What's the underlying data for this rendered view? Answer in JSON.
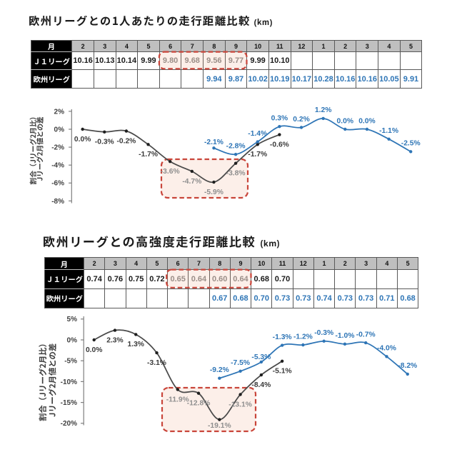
{
  "page": {
    "background": "#ffffff"
  },
  "colors": {
    "blue": "#2e75b6",
    "dark_series": "#4a4a4a",
    "dark_marker": "#1f1f1f",
    "gray_highlight_text": "#8e8e8e",
    "header_gray": "#bfbfbf",
    "grid_line": "#595959",
    "red_dash": "#c9453a",
    "red_fill": "rgba(233,142,98,0.14)",
    "axis": "#7f7f7f",
    "tick_text": "#404040"
  },
  "sections": [
    {
      "title": "欧州リーグとの1人あたりの走行距離比較",
      "unit": "(km)",
      "highlight_months": [
        "6",
        "7",
        "8",
        "9"
      ],
      "table": {
        "corner_label": "月",
        "months": [
          "2",
          "3",
          "4",
          "5",
          "6",
          "7",
          "8",
          "9",
          "10",
          "11",
          "12",
          "1",
          "2",
          "3",
          "4",
          "5"
        ],
        "rows": [
          {
            "label": "Ｊ１リーグ",
            "values": [
              "10.16",
              "10.13",
              "10.14",
              "9.99",
              "9.80",
              "9.68",
              "9.56",
              "9.77",
              "9.99",
              "10.10",
              "",
              "",
              "",
              "",
              "",
              ""
            ]
          },
          {
            "label": "欧州リーグ",
            "values": [
              "",
              "",
              "",
              "",
              "",
              "",
              "9.94",
              "9.87",
              "10.02",
              "10.19",
              "10.17",
              "10.28",
              "10.16",
              "10.16",
              "10.05",
              "9.91"
            ]
          }
        ],
        "highlight_cols": [
          4,
          5,
          6,
          7
        ]
      },
      "chart_data": {
        "type": "line",
        "x_categories": [
          "2",
          "3",
          "4",
          "5",
          "6",
          "7",
          "8",
          "9",
          "10",
          "11",
          "12",
          "1",
          "2",
          "3",
          "4",
          "5"
        ],
        "ylim": [
          -8,
          2
        ],
        "ytick_values": [
          2,
          0,
          -2,
          -4,
          -6,
          -8
        ],
        "ytick_labels": [
          "2%",
          "0%",
          "-2%",
          "-4%",
          "-6%",
          "-8%"
        ],
        "ylabel_line1": "割合（Jリーグ2月比）",
        "ylabel_line2": "Jリーグ2月値との差",
        "legend": "none",
        "grid": "off",
        "series": [
          {
            "name": "J1リーグ",
            "color": "#4a4a4a",
            "marker_color": "#1f1f1f",
            "start_col": 0,
            "values": [
              0.0,
              -0.3,
              -0.2,
              -1.7,
              -3.6,
              -4.7,
              -5.9,
              -3.8,
              -1.7,
              -0.6
            ],
            "labels": [
              "0.0%",
              "-0.3%",
              "-0.2%",
              "-1.7%",
              "-3.6%",
              "-4.7%",
              "-5.9%",
              "-3.8%",
              "-1.7%",
              "-0.6%"
            ],
            "label_placement": "below",
            "highlight_label_indices": [
              4,
              5,
              6,
              7
            ]
          },
          {
            "name": "欧州リーグ",
            "color": "#2e75b6",
            "marker_color": "#2e75b6",
            "start_col": 6,
            "values": [
              -2.1,
              -2.8,
              -1.4,
              0.3,
              0.2,
              1.2,
              0.0,
              0.0,
              -1.1,
              -2.5
            ],
            "labels": [
              "-2.1%",
              "-2.8%",
              "-1.4%",
              "0.3%",
              "0.2%",
              "1.2%",
              "0.0%",
              "0.0%",
              "-1.1%",
              "-2.5%"
            ],
            "label_placement": "above",
            "highlight_label_indices": []
          }
        ]
      }
    },
    {
      "title": "欧州リーグとの高強度走行距離比較",
      "unit": "(km)",
      "highlight_months": [
        "6",
        "7",
        "8",
        "9"
      ],
      "table": {
        "corner_label": "月",
        "months": [
          "2",
          "3",
          "4",
          "5",
          "6",
          "7",
          "8",
          "9",
          "10",
          "11",
          "12",
          "1",
          "2",
          "3",
          "4",
          "5"
        ],
        "rows": [
          {
            "label": "Ｊ１リーグ",
            "values": [
              "0.74",
              "0.76",
              "0.75",
              "0.72",
              "0.65",
              "0.64",
              "0.60",
              "0.64",
              "0.68",
              "0.70",
              "",
              "",
              "",
              "",
              "",
              ""
            ]
          },
          {
            "label": "欧州リーグ",
            "values": [
              "",
              "",
              "",
              "",
              "",
              "",
              "0.67",
              "0.68",
              "0.70",
              "0.73",
              "0.73",
              "0.74",
              "0.73",
              "0.73",
              "0.71",
              "0.68"
            ]
          }
        ],
        "highlight_cols": [
          4,
          5,
          6,
          7
        ]
      },
      "chart_data": {
        "type": "line",
        "x_categories": [
          "2",
          "3",
          "4",
          "5",
          "6",
          "7",
          "8",
          "9",
          "10",
          "11",
          "12",
          "1",
          "2",
          "3",
          "4",
          "5"
        ],
        "ylim": [
          -20,
          5
        ],
        "ytick_values": [
          5,
          0,
          -5,
          -10,
          -15,
          -20
        ],
        "ytick_labels": [
          "5%",
          "0%",
          "-5%",
          "-10%",
          "-15%",
          "-20%"
        ],
        "ylabel_line1": "割合（Jリーグ2月比）",
        "ylabel_line2": "Jリーグ2月値との差",
        "legend": "none",
        "grid": "off",
        "series": [
          {
            "name": "J1リーグ",
            "color": "#4a4a4a",
            "marker_color": "#1f1f1f",
            "start_col": 0,
            "values": [
              0.0,
              2.3,
              1.3,
              -3.1,
              -11.9,
              -12.8,
              -19.1,
              -13.1,
              -8.4,
              -5.1
            ],
            "labels": [
              "0.0%",
              "2.3%",
              "1.3%",
              "-3.1%",
              "-11.9%",
              "-12.8%",
              "-19.1%",
              "-13.1%",
              "-8.4%",
              "-5.1%"
            ],
            "label_placement": "below",
            "highlight_label_indices": [
              4,
              5,
              6,
              7
            ]
          },
          {
            "name": "欧州リーグ",
            "color": "#2e75b6",
            "marker_color": "#2e75b6",
            "start_col": 6,
            "values": [
              -9.2,
              -7.5,
              -5.3,
              -1.3,
              -1.2,
              -0.3,
              -1.0,
              -0.7,
              -4.0,
              -8.2
            ],
            "labels": [
              "-9.2%",
              "-7.5%",
              "-5.3%",
              "-1.3%",
              "-1.2%",
              "-0.3%",
              "-1.0%",
              "-0.7%",
              "-4.0%",
              "-8.2%"
            ],
            "label_placement": "above",
            "highlight_label_indices": []
          }
        ]
      }
    }
  ]
}
